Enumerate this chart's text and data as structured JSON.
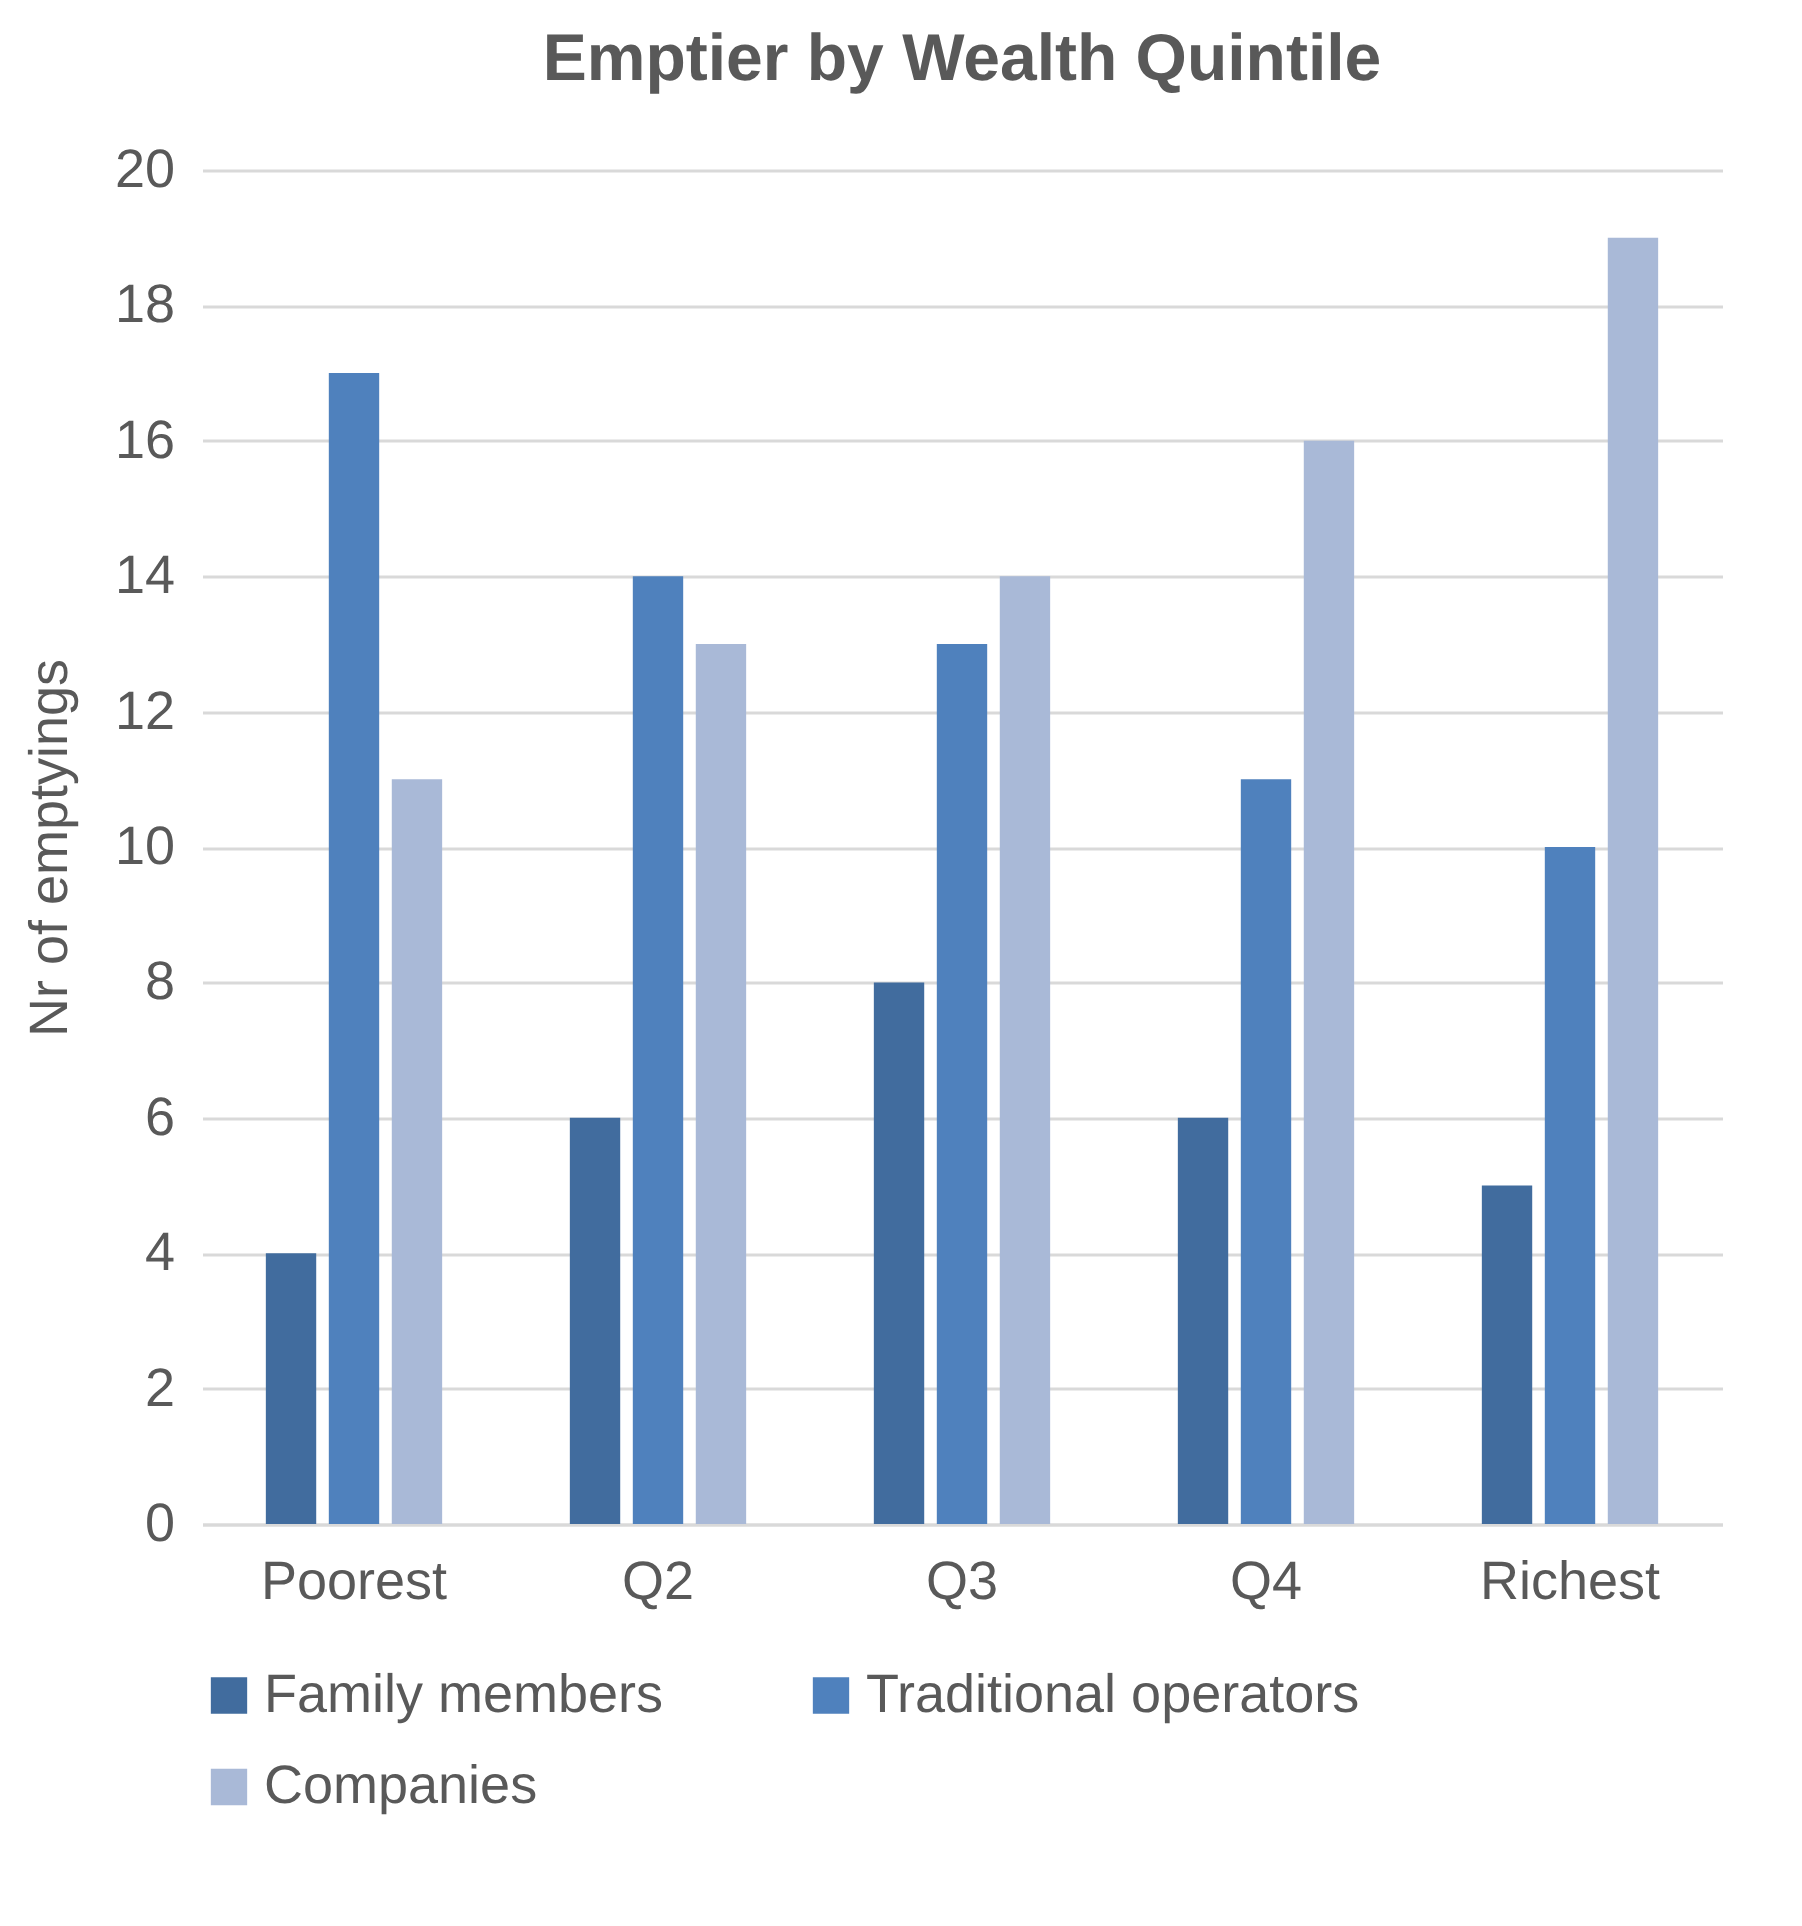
{
  "chart_data": {
    "type": "bar",
    "title": "Emptier by Wealth Quintile",
    "ylabel": "Nr of emptyings",
    "categories": [
      "Poorest",
      "Q2",
      "Q3",
      "Q4",
      "Richest"
    ],
    "series": [
      {
        "name": "Family members",
        "color": "#416c9e",
        "values": [
          4,
          6,
          8,
          6,
          5
        ]
      },
      {
        "name": "Traditional operators",
        "color": "#4f81bd",
        "values": [
          17,
          14,
          13,
          11,
          10
        ]
      },
      {
        "name": "Companies",
        "color": "#a9b9d7",
        "values": [
          11,
          13,
          14,
          16,
          19
        ]
      }
    ],
    "ylim": [
      0,
      20
    ],
    "yticks": [
      0,
      2,
      4,
      6,
      8,
      10,
      12,
      14,
      16,
      18,
      20
    ],
    "grid": "y",
    "legend": "bottom"
  }
}
